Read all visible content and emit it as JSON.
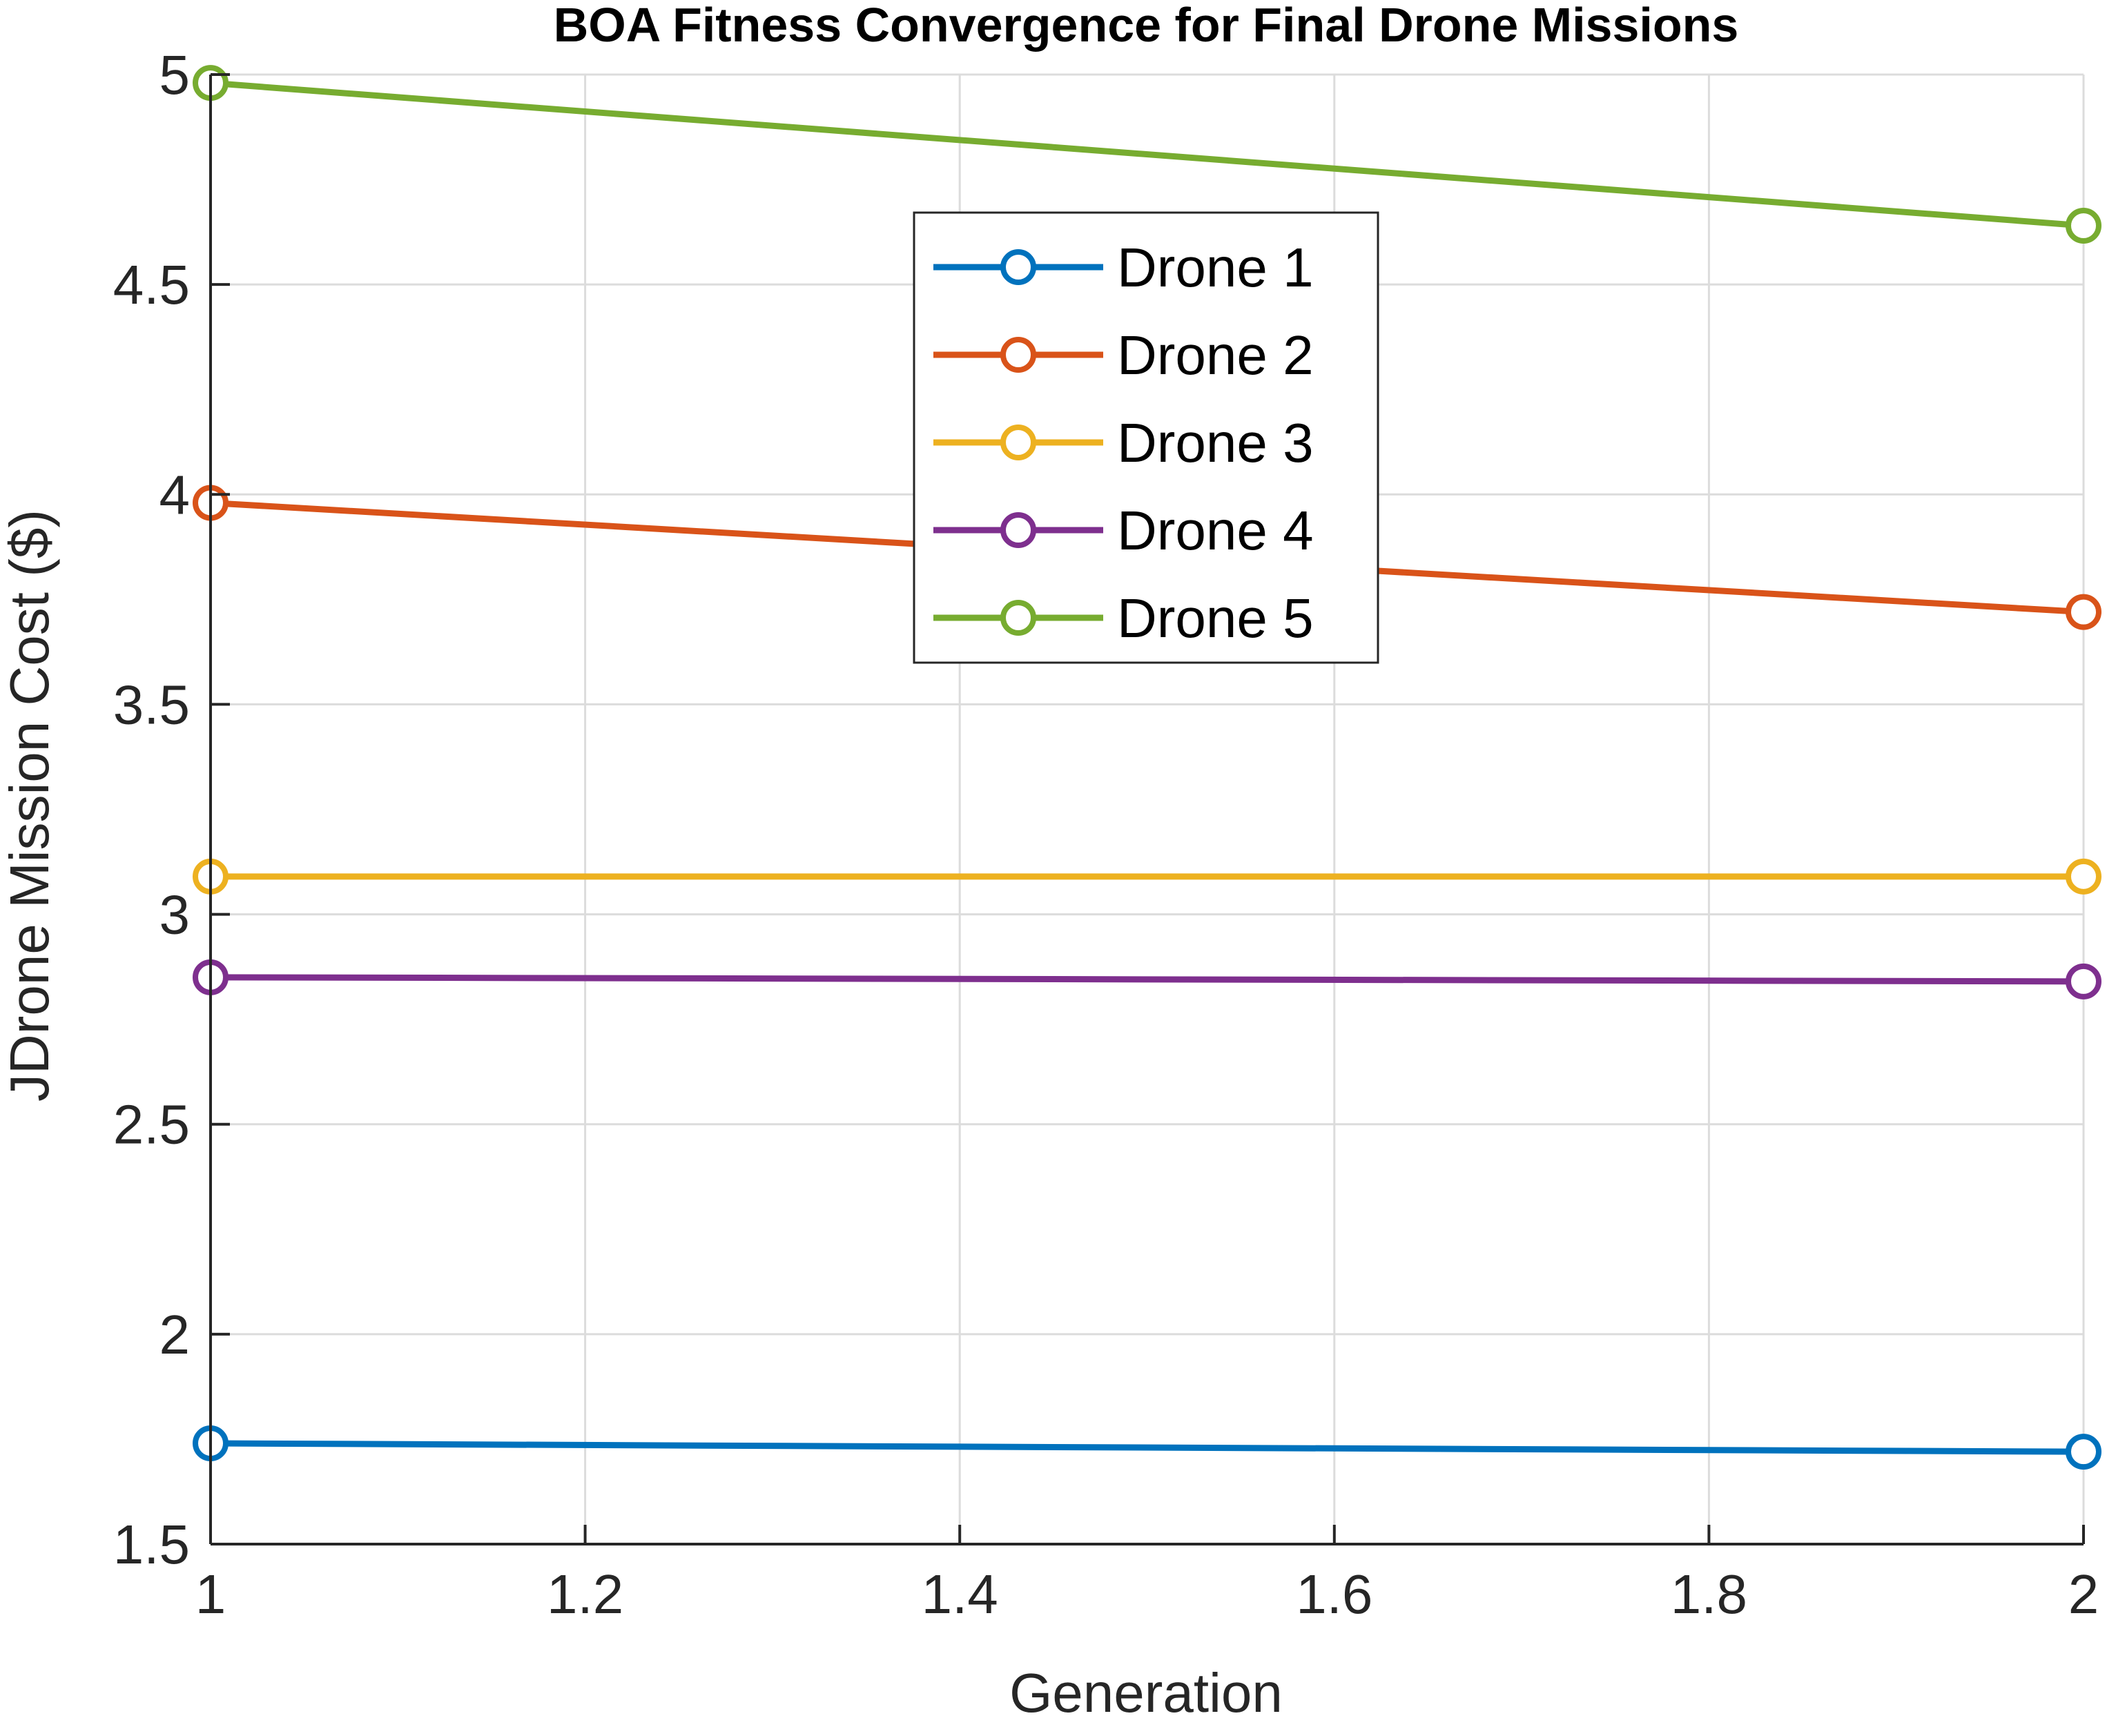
{
  "chart_data": {
    "type": "line",
    "title": "BOA Fitness Convergence for Final Drone Missions",
    "xlabel": "Generation",
    "ylabel": "JDrone Mission Cost ($)",
    "xlim": [
      1,
      2
    ],
    "ylim": [
      1.5,
      5
    ],
    "xticks": [
      1,
      1.2,
      1.4,
      1.6,
      1.8,
      2
    ],
    "xtick_labels": [
      "1",
      "1.2",
      "1.4",
      "1.6",
      "1.8",
      "2"
    ],
    "yticks": [
      1.5,
      2,
      2.5,
      3,
      3.5,
      4,
      4.5,
      5
    ],
    "ytick_labels": [
      "1.5",
      "2",
      "2.5",
      "3",
      "3.5",
      "4",
      "4.5",
      "5"
    ],
    "grid": true,
    "legend_position": "top-center",
    "x": [
      1,
      2
    ],
    "series": [
      {
        "name": "Drone 1",
        "color": "#0072BD",
        "values": [
          1.74,
          1.72
        ]
      },
      {
        "name": "Drone 2",
        "color": "#D95319",
        "values": [
          3.98,
          3.72
        ]
      },
      {
        "name": "Drone 3",
        "color": "#EDB120",
        "values": [
          3.09,
          3.09
        ]
      },
      {
        "name": "Drone 4",
        "color": "#7E2F8E",
        "values": [
          2.85,
          2.84
        ]
      },
      {
        "name": "Drone 5",
        "color": "#77AC30",
        "values": [
          4.98,
          4.64
        ]
      }
    ]
  }
}
